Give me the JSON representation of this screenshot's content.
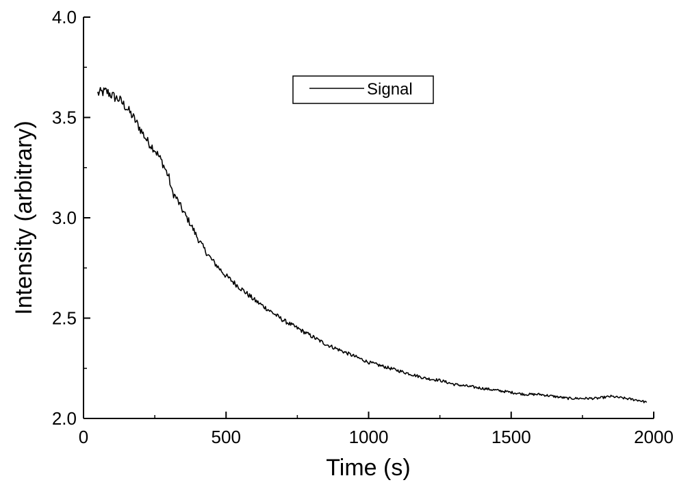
{
  "chart_data": {
    "type": "line",
    "xlabel": "Time (s)",
    "ylabel": "Intensity (arbitrary)",
    "xlim": [
      0,
      2000
    ],
    "ylim": [
      2.0,
      4.0
    ],
    "x_ticks": [
      "0",
      "500",
      "1000",
      "1500",
      "2000"
    ],
    "y_ticks": [
      "2.0",
      "2.5",
      "3.0",
      "3.5",
      "4.0"
    ],
    "grid": false,
    "legend_position": "top-center",
    "series": [
      {
        "name": "Signal",
        "color": "#000000",
        "x": [
          50,
          80,
          110,
          125,
          150,
          175,
          200,
          225,
          250,
          275,
          300,
          310,
          325,
          350,
          375,
          400,
          425,
          450,
          475,
          500,
          550,
          600,
          650,
          700,
          750,
          800,
          850,
          900,
          950,
          1000,
          1050,
          1100,
          1150,
          1200,
          1250,
          1300,
          1350,
          1400,
          1450,
          1500,
          1550,
          1600,
          1650,
          1700,
          1750,
          1800,
          1850,
          1900,
          1950,
          1975
        ],
        "y": [
          3.62,
          3.63,
          3.6,
          3.59,
          3.55,
          3.5,
          3.44,
          3.38,
          3.34,
          3.28,
          3.2,
          3.13,
          3.1,
          3.03,
          2.97,
          2.9,
          2.84,
          2.79,
          2.75,
          2.71,
          2.65,
          2.59,
          2.54,
          2.49,
          2.45,
          2.41,
          2.37,
          2.34,
          2.31,
          2.28,
          2.26,
          2.24,
          2.22,
          2.2,
          2.19,
          2.17,
          2.16,
          2.15,
          2.14,
          2.13,
          2.12,
          2.12,
          2.11,
          2.1,
          2.1,
          2.1,
          2.11,
          2.1,
          2.09,
          2.08
        ]
      }
    ]
  }
}
